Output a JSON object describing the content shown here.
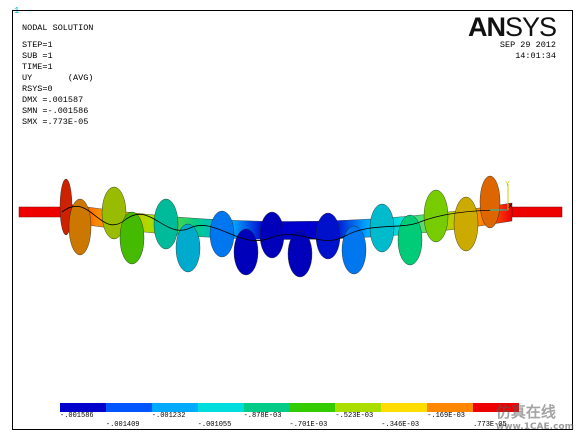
{
  "window_number": "1",
  "header": {
    "title": "NODAL SOLUTION",
    "step": "STEP=1",
    "sub": "SUB =1",
    "time": "TIME=1",
    "quantity": "UY       (AVG)",
    "rsys": "RSYS=0",
    "dmx": "DMX =.001587",
    "smn": "SMN =-.001586",
    "smx": "SMX =.773E-05"
  },
  "logo": {
    "part1": "AN",
    "part2": "SYS"
  },
  "datetime": {
    "date": "SEP 29 2012",
    "time": "14:01:34"
  },
  "axis_triad": {
    "y": "Y",
    "x": "X"
  },
  "legend": {
    "colors": [
      "#0000cc",
      "#0055ff",
      "#00aaff",
      "#00dddd",
      "#00cc88",
      "#33cc00",
      "#aadd00",
      "#ffdd00",
      "#ff8800",
      "#ee0000"
    ],
    "labels_top": [
      "-.001586",
      "-.001232",
      "-.878E-03",
      "-.523E-03",
      "-.169E-03"
    ],
    "labels_bottom": [
      "-.001409",
      "-.001055",
      "-.701E-03",
      "-.346E-03",
      ".773E-05"
    ]
  },
  "watermark": {
    "text": "仿真在线",
    "url": "www.1CAE.com"
  }
}
